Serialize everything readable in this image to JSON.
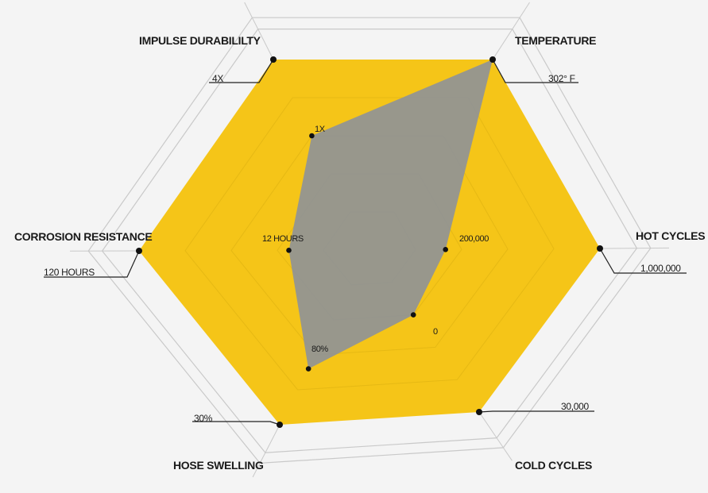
{
  "chart_data": {
    "type": "radar",
    "colors": {
      "background": "#f4f4f4",
      "outer_fill": "#f5c518",
      "inner_fill": "#8f9297",
      "grid": "#c9c9c9",
      "point": "#111111"
    },
    "axes": [
      {
        "name": "IMPULSE DURABILILTY",
        "outer_label": "4X",
        "inner_label": "1X",
        "outer_value": 1.0,
        "inner_value": 0.6
      },
      {
        "name": "TEMPERATURE",
        "outer_label": "302° F",
        "inner_label": "",
        "outer_value": 1.0,
        "inner_value": 1.0
      },
      {
        "name": "HOT CYCLES",
        "outer_label": "1,000,000",
        "inner_label": "200,000",
        "outer_value": 1.0,
        "inner_value": 0.33
      },
      {
        "name": "COLD CYCLES",
        "outer_label": "30,000",
        "inner_label": "0",
        "outer_value": 1.0,
        "inner_value": 0.4
      },
      {
        "name": "HOSE SWELLING",
        "outer_label": "30%",
        "inner_label": "80%",
        "outer_value": 1.0,
        "inner_value": 0.68
      },
      {
        "name": "CORROSION RESISTANCE",
        "outer_label": "120 HOURS",
        "inner_label": "12 HOURS",
        "outer_value": 1.0,
        "inner_value": 0.35
      }
    ],
    "grid_rings": 5
  }
}
